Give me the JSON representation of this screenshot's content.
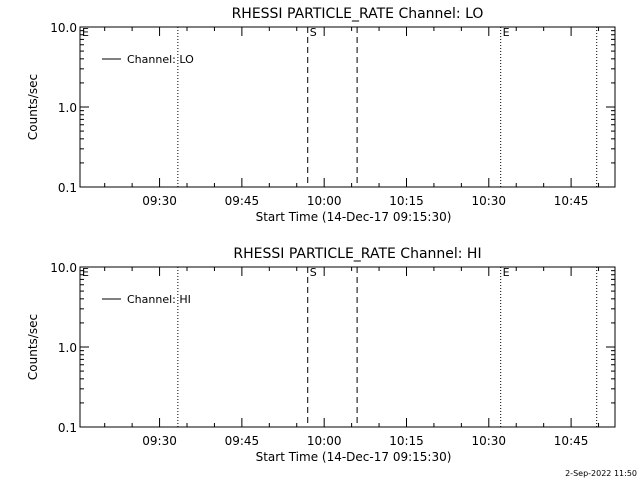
{
  "footer_date": "2-Sep-2022 11:50",
  "chart_data": [
    {
      "type": "line",
      "title": "RHESSI PARTICLE_RATE Channel: LO",
      "xlabel": "Start Time (14-Dec-17 09:15:30)",
      "ylabel": "Counts/sec",
      "y_scale": "log",
      "ylim": [
        0.1,
        10.0
      ],
      "y_ticks": [
        "0.1",
        "1.0",
        "10.0"
      ],
      "xlim": [
        "09:15:30",
        "10:53:00"
      ],
      "x_ticks": [
        "09:30",
        "09:45",
        "10:00",
        "10:15",
        "10:30",
        "10:45"
      ],
      "legend": {
        "placement": "top-left",
        "label": "Channel: LO"
      },
      "series": [
        {
          "name": "Channel: LO",
          "values": []
        }
      ],
      "markers": [
        {
          "time": "09:15:30",
          "style": "dotted",
          "label": "E"
        },
        {
          "time": "09:33:20",
          "style": "dotted",
          "label": ""
        },
        {
          "time": "09:57:00",
          "style": "dashed",
          "label": "S"
        },
        {
          "time": "10:06:00",
          "style": "dashed",
          "label": ""
        },
        {
          "time": "10:32:10",
          "style": "dotted",
          "label": "E"
        },
        {
          "time": "10:49:40",
          "style": "dotted",
          "label": ""
        }
      ]
    },
    {
      "type": "line",
      "title": "RHESSI PARTICLE_RATE Channel: HI",
      "xlabel": "Start Time (14-Dec-17 09:15:30)",
      "ylabel": "Counts/sec",
      "y_scale": "log",
      "ylim": [
        0.1,
        10.0
      ],
      "y_ticks": [
        "0.1",
        "1.0",
        "10.0"
      ],
      "xlim": [
        "09:15:30",
        "10:53:00"
      ],
      "x_ticks": [
        "09:30",
        "09:45",
        "10:00",
        "10:15",
        "10:30",
        "10:45"
      ],
      "legend": {
        "placement": "top-left",
        "label": "Channel: HI"
      },
      "series": [
        {
          "name": "Channel: HI",
          "values": []
        }
      ],
      "markers": [
        {
          "time": "09:15:30",
          "style": "dotted",
          "label": "E"
        },
        {
          "time": "09:33:20",
          "style": "dotted",
          "label": ""
        },
        {
          "time": "09:57:00",
          "style": "dashed",
          "label": "S"
        },
        {
          "time": "10:06:00",
          "style": "dashed",
          "label": ""
        },
        {
          "time": "10:32:10",
          "style": "dotted",
          "label": "E"
        },
        {
          "time": "10:49:40",
          "style": "dotted",
          "label": ""
        }
      ]
    }
  ]
}
